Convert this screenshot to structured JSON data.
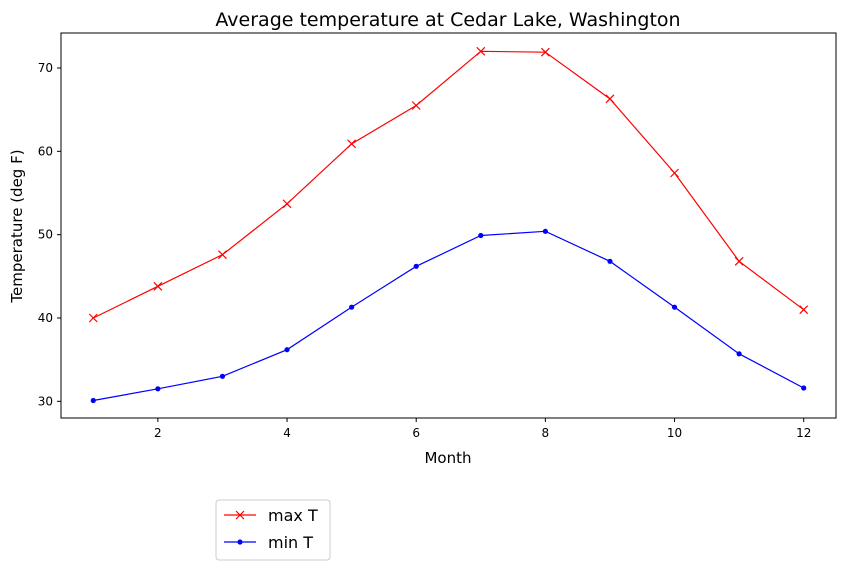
{
  "chart_data": {
    "type": "line",
    "title": "Average temperature at Cedar Lake, Washington",
    "xlabel": "Month",
    "ylabel": "Temperature (deg F)",
    "x": [
      1,
      2,
      3,
      4,
      5,
      6,
      7,
      8,
      9,
      10,
      11,
      12
    ],
    "xticks": [
      2,
      4,
      6,
      8,
      10,
      12
    ],
    "yticks": [
      30,
      40,
      50,
      60,
      70
    ],
    "xlim": [
      0.5,
      12.5
    ],
    "ylim": [
      28,
      74.2
    ],
    "grid": false,
    "legend_position": "below-left",
    "series": [
      {
        "name": "max T",
        "color": "#ff0000",
        "marker": "x",
        "values": [
          40.0,
          43.8,
          47.6,
          53.7,
          60.9,
          65.5,
          72.0,
          71.9,
          66.3,
          57.4,
          46.8,
          41.0
        ]
      },
      {
        "name": "min T",
        "color": "#0000ff",
        "marker": "dot",
        "values": [
          30.1,
          31.5,
          33.0,
          36.2,
          41.3,
          46.2,
          49.9,
          50.4,
          46.8,
          41.3,
          35.7,
          31.6
        ]
      }
    ]
  }
}
